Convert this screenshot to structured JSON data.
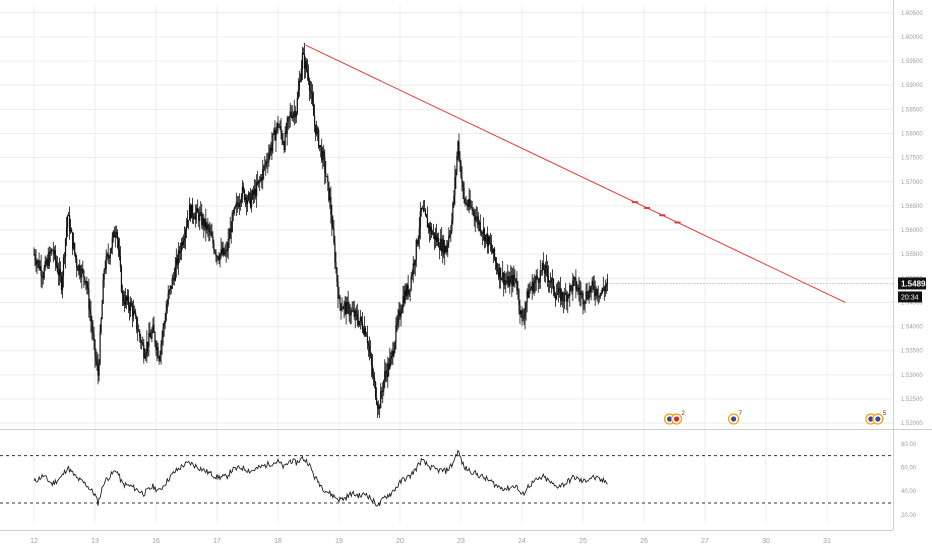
{
  "chart_data": {
    "type": "candlestick",
    "title": "",
    "price_axis": {
      "ticks": [
        "1.60500",
        "1.60000",
        "1.59500",
        "1.59000",
        "1.58500",
        "1.58000",
        "1.57500",
        "1.57000",
        "1.56500",
        "1.56000",
        "1.55500",
        "1.55000",
        "1.54500",
        "1.54000",
        "1.53500",
        "1.53000",
        "1.52500",
        "1.52000"
      ],
      "values": [
        1.605,
        1.6,
        1.595,
        1.59,
        1.585,
        1.58,
        1.575,
        1.57,
        1.565,
        1.56,
        1.555,
        1.55,
        1.545,
        1.54,
        1.535,
        1.53,
        1.525,
        1.52
      ],
      "last_price": "1.54894",
      "last_price_value": 1.54894,
      "countdown": "20:34"
    },
    "x_axis": {
      "labels": [
        "12",
        "13",
        "16",
        "17",
        "18",
        "19",
        "20",
        "23",
        "24",
        "25",
        "26",
        "27",
        "30",
        "31"
      ],
      "day_index": [
        0,
        1,
        2,
        3,
        4,
        5,
        6,
        7,
        8,
        9,
        10,
        11,
        12,
        13
      ]
    },
    "price_path": [
      [
        0.0,
        1.555
      ],
      [
        0.15,
        1.551
      ],
      [
        0.3,
        1.556
      ],
      [
        0.45,
        1.549
      ],
      [
        0.55,
        1.563
      ],
      [
        0.7,
        1.553
      ],
      [
        0.85,
        1.55
      ],
      [
        1.0,
        1.534
      ],
      [
        1.05,
        1.53
      ],
      [
        1.15,
        1.552
      ],
      [
        1.25,
        1.556
      ],
      [
        1.35,
        1.561
      ],
      [
        1.45,
        1.546
      ],
      [
        1.6,
        1.544
      ],
      [
        1.8,
        1.535
      ],
      [
        1.95,
        1.539
      ],
      [
        2.05,
        1.534
      ],
      [
        2.2,
        1.546
      ],
      [
        2.3,
        1.551
      ],
      [
        2.45,
        1.559
      ],
      [
        2.55,
        1.564
      ],
      [
        2.7,
        1.563
      ],
      [
        2.85,
        1.56
      ],
      [
        3.0,
        1.555
      ],
      [
        3.15,
        1.555
      ],
      [
        3.25,
        1.562
      ],
      [
        3.4,
        1.568
      ],
      [
        3.55,
        1.566
      ],
      [
        3.7,
        1.57
      ],
      [
        3.85,
        1.576
      ],
      [
        4.0,
        1.582
      ],
      [
        4.1,
        1.578
      ],
      [
        4.2,
        1.584
      ],
      [
        4.3,
        1.585
      ],
      [
        4.4,
        1.596
      ],
      [
        4.5,
        1.592
      ],
      [
        4.6,
        1.582
      ],
      [
        4.75,
        1.574
      ],
      [
        4.85,
        1.566
      ],
      [
        5.0,
        1.545
      ],
      [
        5.1,
        1.544
      ],
      [
        5.2,
        1.543
      ],
      [
        5.35,
        1.541
      ],
      [
        5.45,
        1.539
      ],
      [
        5.55,
        1.53
      ],
      [
        5.65,
        1.523
      ],
      [
        5.75,
        1.53
      ],
      [
        5.85,
        1.533
      ],
      [
        5.95,
        1.54
      ],
      [
        6.05,
        1.546
      ],
      [
        6.15,
        1.548
      ],
      [
        6.25,
        1.555
      ],
      [
        6.35,
        1.564
      ],
      [
        6.5,
        1.56
      ],
      [
        6.6,
        1.558
      ],
      [
        6.75,
        1.556
      ],
      [
        6.85,
        1.562
      ],
      [
        6.95,
        1.578
      ],
      [
        7.05,
        1.566
      ],
      [
        7.2,
        1.564
      ],
      [
        7.35,
        1.56
      ],
      [
        7.5,
        1.556
      ],
      [
        7.6,
        1.552
      ],
      [
        7.75,
        1.549
      ],
      [
        7.9,
        1.55
      ],
      [
        8.0,
        1.541
      ],
      [
        8.1,
        1.547
      ],
      [
        8.2,
        1.549
      ],
      [
        8.35,
        1.552
      ],
      [
        8.45,
        1.55
      ],
      [
        8.55,
        1.547
      ],
      [
        8.7,
        1.546
      ],
      [
        8.85,
        1.549
      ],
      [
        9.0,
        1.546
      ],
      [
        9.15,
        1.548
      ],
      [
        9.3,
        1.547
      ],
      [
        9.4,
        1.549
      ]
    ],
    "trendline": {
      "color": "#e53935",
      "start": {
        "day": 4.45,
        "price": 1.5983
      },
      "end": {
        "day": 13.3,
        "price": 1.545
      },
      "markers_near_days": [
        9.85,
        10.05,
        10.3,
        10.55
      ]
    },
    "oscillator": {
      "ticks": [
        "80.00",
        "60.00",
        "40.00",
        "20.00"
      ],
      "values": [
        80,
        60,
        40,
        20
      ],
      "upper_level": 70,
      "lower_level": 30,
      "line_color": "#222222",
      "series": [
        [
          0.0,
          48
        ],
        [
          0.15,
          53
        ],
        [
          0.3,
          46
        ],
        [
          0.45,
          52
        ],
        [
          0.55,
          60
        ],
        [
          0.7,
          51
        ],
        [
          0.85,
          46
        ],
        [
          1.0,
          37
        ],
        [
          1.05,
          30
        ],
        [
          1.15,
          48
        ],
        [
          1.25,
          53
        ],
        [
          1.35,
          58
        ],
        [
          1.45,
          46
        ],
        [
          1.6,
          44
        ],
        [
          1.8,
          38
        ],
        [
          1.95,
          44
        ],
        [
          2.05,
          40
        ],
        [
          2.2,
          50
        ],
        [
          2.3,
          56
        ],
        [
          2.45,
          62
        ],
        [
          2.55,
          64
        ],
        [
          2.7,
          60
        ],
        [
          2.85,
          56
        ],
        [
          3.0,
          52
        ],
        [
          3.15,
          52
        ],
        [
          3.25,
          58
        ],
        [
          3.4,
          60
        ],
        [
          3.55,
          57
        ],
        [
          3.7,
          60
        ],
        [
          3.85,
          63
        ],
        [
          4.0,
          65
        ],
        [
          4.1,
          60
        ],
        [
          4.2,
          66
        ],
        [
          4.3,
          64
        ],
        [
          4.4,
          68
        ],
        [
          4.5,
          64
        ],
        [
          4.6,
          52
        ],
        [
          4.75,
          42
        ],
        [
          4.85,
          38
        ],
        [
          5.0,
          33
        ],
        [
          5.1,
          34
        ],
        [
          5.2,
          38
        ],
        [
          5.35,
          36
        ],
        [
          5.45,
          38
        ],
        [
          5.55,
          32
        ],
        [
          5.65,
          28
        ],
        [
          5.75,
          35
        ],
        [
          5.85,
          38
        ],
        [
          5.95,
          44
        ],
        [
          6.05,
          50
        ],
        [
          6.15,
          52
        ],
        [
          6.25,
          58
        ],
        [
          6.35,
          66
        ],
        [
          6.5,
          60
        ],
        [
          6.6,
          58
        ],
        [
          6.75,
          57
        ],
        [
          6.85,
          62
        ],
        [
          6.95,
          74
        ],
        [
          7.05,
          60
        ],
        [
          7.2,
          56
        ],
        [
          7.35,
          52
        ],
        [
          7.5,
          48
        ],
        [
          7.6,
          44
        ],
        [
          7.75,
          42
        ],
        [
          7.9,
          45
        ],
        [
          8.0,
          36
        ],
        [
          8.1,
          44
        ],
        [
          8.2,
          48
        ],
        [
          8.35,
          52
        ],
        [
          8.45,
          48
        ],
        [
          8.55,
          44
        ],
        [
          8.7,
          46
        ],
        [
          8.85,
          52
        ],
        [
          9.0,
          48
        ],
        [
          9.15,
          52
        ],
        [
          9.3,
          49
        ],
        [
          9.4,
          48
        ]
      ]
    },
    "event_badges": [
      {
        "day": 10.55,
        "label": "2",
        "icon": "flag-icons-pair"
      },
      {
        "day": 11.6,
        "label": "7",
        "icon": "clock-earnings-icon"
      },
      {
        "day": 13.85,
        "label": "5",
        "icon": "clock-earnings-pair"
      }
    ],
    "colors": {
      "candle": "#111111",
      "grid": "#ececec",
      "axis_separator": "#cfcfcf",
      "label_bg": "#111111",
      "event_orange": "#f59e0b",
      "event_blue": "#3b4a8f"
    }
  }
}
